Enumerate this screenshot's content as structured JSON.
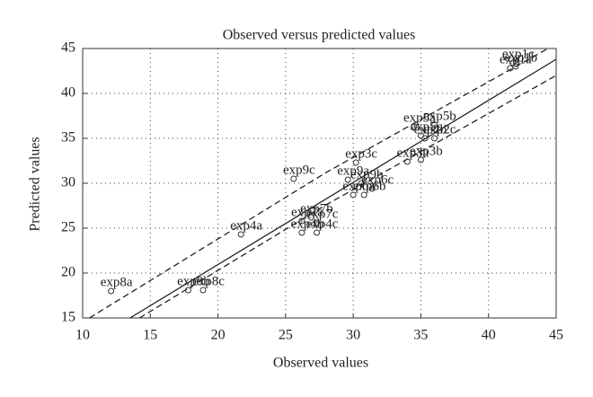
{
  "chart_data": {
    "type": "scatter",
    "title": "Observed versus predicted values",
    "xlabel": "Observed values",
    "ylabel": "Predicted values",
    "xlim": [
      10,
      45
    ],
    "xticks": [
      10,
      15,
      20,
      25,
      30,
      35,
      40,
      45
    ],
    "ylim": [
      15,
      45
    ],
    "yticks": [
      15,
      20,
      25,
      30,
      35,
      40,
      45
    ],
    "grid": true,
    "color": "#333333",
    "labels": [
      "exp8a",
      "exp8b",
      "exp8c",
      "exp4a",
      "exp9c",
      "exp4b",
      "exp4c",
      "exp7a",
      "exp7b",
      "exp7c",
      "exp3c",
      "exp9a",
      "exp9b",
      "exp6a",
      "exp6b",
      "exp6c",
      "exp3a",
      "exp3b",
      "exp5a",
      "exp5b",
      "exp5c",
      "exp2b",
      "exp2c",
      "exp1a",
      "exp1b",
      "exp1c"
    ],
    "x": [
      12.1,
      17.8,
      18.9,
      21.7,
      25.6,
      26.2,
      27.3,
      26.2,
      26.9,
      27.3,
      30.2,
      29.6,
      30.6,
      30.0,
      30.8,
      31.4,
      34.0,
      35.0,
      34.5,
      36.0,
      35.0,
      35.3,
      36.0,
      41.6,
      42.0,
      41.8
    ],
    "values": [
      18.0,
      18.1,
      18.1,
      24.3,
      30.5,
      24.5,
      24.5,
      25.8,
      26.2,
      25.6,
      32.3,
      30.4,
      30.0,
      28.7,
      28.7,
      29.4,
      32.4,
      32.6,
      36.3,
      36.5,
      35.3,
      35.0,
      35.0,
      42.8,
      43.0,
      43.4
    ],
    "lines": [
      {
        "style": "solid",
        "x": [
          13.5,
          45
        ],
        "y": [
          15,
          43.8
        ]
      },
      {
        "style": "dashed",
        "x": [
          10.5,
          28,
          44.4
        ],
        "y": [
          15,
          31.2,
          45
        ]
      },
      {
        "style": "dashed",
        "x": [
          14.2,
          28,
          45
        ],
        "y": [
          15,
          27.6,
          42.0
        ]
      }
    ]
  }
}
